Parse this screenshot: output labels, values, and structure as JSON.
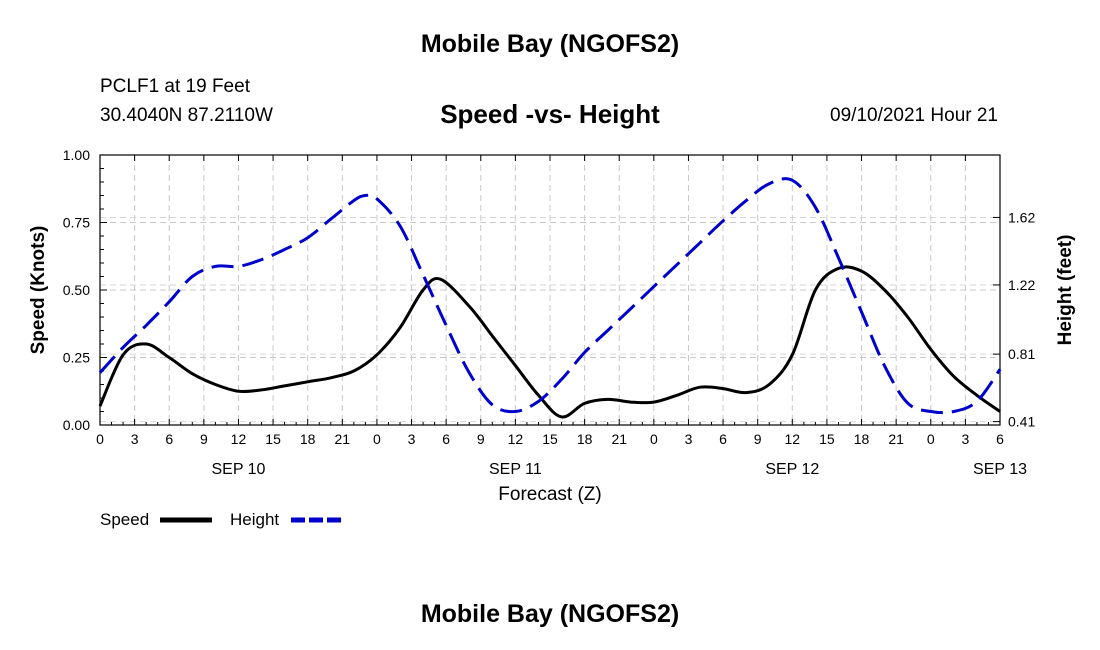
{
  "header": {
    "top_title": "Mobile Bay (NGOFS2)",
    "station": "PCLF1 at 19 Feet",
    "coordinates": "30.4040N  87.2110W",
    "subtitle": "Speed -vs- Height",
    "datetime": "09/10/2021 Hour 21",
    "bottom_title": "Mobile Bay (NGOFS2)"
  },
  "chart_data": {
    "type": "line",
    "title": "Speed -vs- Height",
    "xlabel": "Forecast (Z)",
    "ylabel": "Speed (Knots)",
    "y2label": "Height (feet)",
    "grid": true,
    "legend": "bottom-left",
    "x_range": [
      0,
      78
    ],
    "ylim": [
      0,
      1
    ],
    "y2lim": [
      0.39,
      1.99
    ],
    "y_ticks": [
      0,
      0.25,
      0.5,
      0.75,
      1.0
    ],
    "y_tick_labels": [
      "0.00",
      "0.25",
      "0.50",
      "0.75",
      "1.00"
    ],
    "y2_ticks": [
      0.41,
      0.81,
      1.22,
      1.62
    ],
    "y2_tick_labels": [
      "0.41",
      "0.81",
      "1.22",
      "1.62"
    ],
    "x_ticks": [
      0,
      3,
      6,
      9,
      12,
      15,
      18,
      21,
      24,
      27,
      30,
      33,
      36,
      39,
      42,
      45,
      48,
      51,
      54,
      57,
      60,
      63,
      66,
      69,
      72,
      75,
      78
    ],
    "x_tick_labels": [
      "0",
      "3",
      "6",
      "9",
      "12",
      "15",
      "18",
      "21",
      "0",
      "3",
      "6",
      "9",
      "12",
      "15",
      "18",
      "21",
      "0",
      "3",
      "6",
      "9",
      "12",
      "15",
      "18",
      "21",
      "0",
      "3",
      "6"
    ],
    "date_labels": [
      {
        "x": 12,
        "label": "SEP 10"
      },
      {
        "x": 36,
        "label": "SEP 11"
      },
      {
        "x": 60,
        "label": "SEP 12"
      },
      {
        "x": 78,
        "label": "SEP 13"
      }
    ],
    "series": [
      {
        "name": "Speed",
        "axis": "left",
        "color": "#000000",
        "dash": "solid",
        "x": [
          0,
          2,
          4,
          6,
          8,
          10,
          12,
          14,
          16,
          18,
          20,
          22,
          24,
          26,
          28,
          29.5,
          32,
          34,
          36,
          38,
          40,
          42,
          44,
          46,
          48,
          50,
          52,
          54,
          56,
          58,
          60,
          62,
          64,
          66,
          68,
          70,
          72,
          74,
          76,
          78
        ],
        "values": [
          0.07,
          0.26,
          0.3,
          0.25,
          0.19,
          0.15,
          0.125,
          0.13,
          0.145,
          0.16,
          0.175,
          0.2,
          0.26,
          0.36,
          0.5,
          0.54,
          0.44,
          0.33,
          0.22,
          0.11,
          0.03,
          0.08,
          0.095,
          0.085,
          0.085,
          0.11,
          0.14,
          0.135,
          0.12,
          0.15,
          0.26,
          0.5,
          0.58,
          0.57,
          0.5,
          0.4,
          0.28,
          0.18,
          0.11,
          0.05
        ]
      },
      {
        "name": "Height",
        "axis": "right",
        "color": "#0000cc",
        "dash": "dashed",
        "x": [
          0,
          2,
          4,
          6,
          8,
          10,
          12,
          14,
          16,
          18,
          20,
          22,
          23,
          24,
          26,
          28,
          30,
          32,
          34,
          36,
          38,
          40,
          42,
          44,
          46,
          48,
          50,
          52,
          54,
          56,
          58,
          60,
          62,
          64,
          66,
          68,
          70,
          72,
          74,
          76,
          78
        ],
        "values": [
          0.7,
          0.85,
          0.98,
          1.12,
          1.27,
          1.33,
          1.33,
          1.37,
          1.43,
          1.5,
          1.61,
          1.72,
          1.75,
          1.73,
          1.57,
          1.28,
          0.98,
          0.7,
          0.51,
          0.47,
          0.53,
          0.66,
          0.82,
          0.95,
          1.08,
          1.21,
          1.34,
          1.47,
          1.6,
          1.72,
          1.82,
          1.84,
          1.68,
          1.38,
          1.06,
          0.74,
          0.52,
          0.47,
          0.47,
          0.53,
          0.72
        ]
      }
    ]
  }
}
